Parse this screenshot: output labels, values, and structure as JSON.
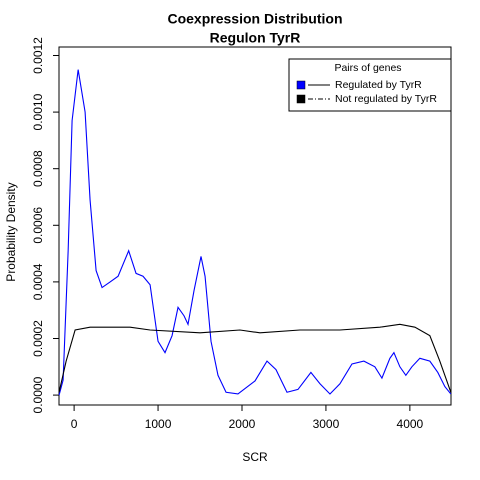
{
  "chart_data": {
    "type": "line",
    "title": "Coexpression Distribution",
    "subtitle": "Regulon TyrR",
    "x_label": "SCR",
    "y_label": "Probability Density",
    "legend_title": "Pairs of genes",
    "legend_position": "top-right",
    "xlim": [
      -180,
      4490
    ],
    "ylim": [
      -3.5e-05,
      0.00123
    ],
    "xticks": [
      0,
      1000,
      2000,
      3000,
      4000
    ],
    "yticks": [
      {
        "value": 0,
        "label": "0.0000"
      },
      {
        "value": 0.0002,
        "label": "0.0002"
      },
      {
        "value": 0.0004,
        "label": "0.0004"
      },
      {
        "value": 0.0006,
        "label": "0.0006"
      },
      {
        "value": 0.0008,
        "label": "0.0008"
      },
      {
        "value": 0.001,
        "label": "0.0010"
      },
      {
        "value": 0.0012,
        "label": "0.0012"
      }
    ],
    "series": [
      {
        "name": "Regulated by  TyrR",
        "color": "#0000ff",
        "x": [
          -179,
          -131,
          -71,
          -24,
          48,
          131,
          190,
          262,
          333,
          429,
          524,
          650,
          738,
          821,
          905,
          1000,
          1083,
          1167,
          1238,
          1310,
          1357,
          1429,
          1512,
          1560,
          1631,
          1714,
          1810,
          1952,
          2155,
          2298,
          2405,
          2536,
          2667,
          2821,
          2929,
          3048,
          3167,
          3310,
          3452,
          3583,
          3667,
          3762,
          3810,
          3881,
          3952,
          4024,
          4119,
          4238,
          4333,
          4417,
          4488
        ],
        "values": [
          0,
          5.3e-05,
          0.00051,
          0.00097,
          0.00115,
          0.001,
          0.00069,
          0.00044,
          0.00038,
          0.0004,
          0.00042,
          0.00051,
          0.00043,
          0.00042,
          0.00039,
          0.00019,
          0.00015,
          0.00021,
          0.00031,
          0.00028,
          0.00025,
          0.00037,
          0.00049,
          0.00042,
          0.00019,
          7e-05,
          1e-05,
          4e-06,
          5e-05,
          0.00012,
          9e-05,
          1e-05,
          2e-05,
          8e-05,
          4e-05,
          4e-06,
          4e-05,
          0.00011,
          0.00012,
          0.0001,
          6e-05,
          0.00013,
          0.00015,
          0.0001,
          7e-05,
          0.0001,
          0.00013,
          0.00012,
          8e-05,
          3e-05,
          4e-06
        ]
      },
      {
        "name": "Not regulated by  TyrR",
        "color": "#000000",
        "x": [
          -179,
          -95,
          12,
          190,
          429,
          667,
          905,
          1500,
          1976,
          2214,
          2690,
          3167,
          3643,
          3881,
          4060,
          4238,
          4357,
          4488
        ],
        "values": [
          1e-05,
          0.00012,
          0.00023,
          0.00024,
          0.00024,
          0.00024,
          0.00023,
          0.00022,
          0.00023,
          0.00022,
          0.00023,
          0.00023,
          0.00024,
          0.00025,
          0.00024,
          0.00021,
          0.00012,
          1e-05
        ]
      }
    ]
  }
}
